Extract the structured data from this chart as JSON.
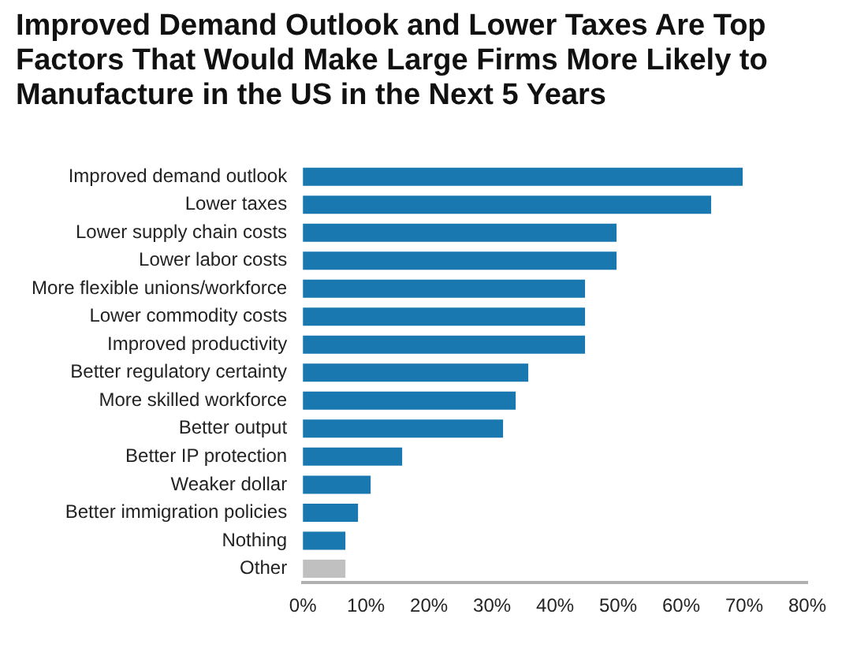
{
  "chart_data": {
    "type": "bar",
    "orientation": "horizontal",
    "title": "Improved Demand Outlook and Lower Taxes Are Top Factors That Would Make Large Firms More Likely to Manufacture in the US in the Next 5 Years",
    "categories": [
      "Improved demand outlook",
      "Lower taxes",
      "Lower supply chain costs",
      "Lower labor costs",
      "More flexible unions/workforce",
      "Lower commodity costs",
      "Improved productivity",
      "Better regulatory certainty",
      "More skilled workforce",
      "Better output",
      "Better IP protection",
      "Weaker dollar",
      "Better immigration policies",
      "Nothing",
      "Other"
    ],
    "values": [
      70,
      65,
      50,
      50,
      45,
      45,
      45,
      36,
      34,
      32,
      16,
      11,
      9,
      7,
      7
    ],
    "colors": [
      "#1a78b0",
      "#1a78b0",
      "#1a78b0",
      "#1a78b0",
      "#1a78b0",
      "#1a78b0",
      "#1a78b0",
      "#1a78b0",
      "#1a78b0",
      "#1a78b0",
      "#1a78b0",
      "#1a78b0",
      "#1a78b0",
      "#1a78b0",
      "#c0c0c0"
    ],
    "xlim": [
      0,
      80
    ],
    "xticks": [
      {
        "value": 0,
        "label": "0%"
      },
      {
        "value": 10,
        "label": "10%"
      },
      {
        "value": 20,
        "label": "20%"
      },
      {
        "value": 30,
        "label": "30%"
      },
      {
        "value": 40,
        "label": "40%"
      },
      {
        "value": 50,
        "label": "50%"
      },
      {
        "value": 60,
        "label": "60%"
      },
      {
        "value": 70,
        "label": "70%"
      },
      {
        "value": 80,
        "label": "80%"
      }
    ],
    "grid": false,
    "legend": false
  }
}
